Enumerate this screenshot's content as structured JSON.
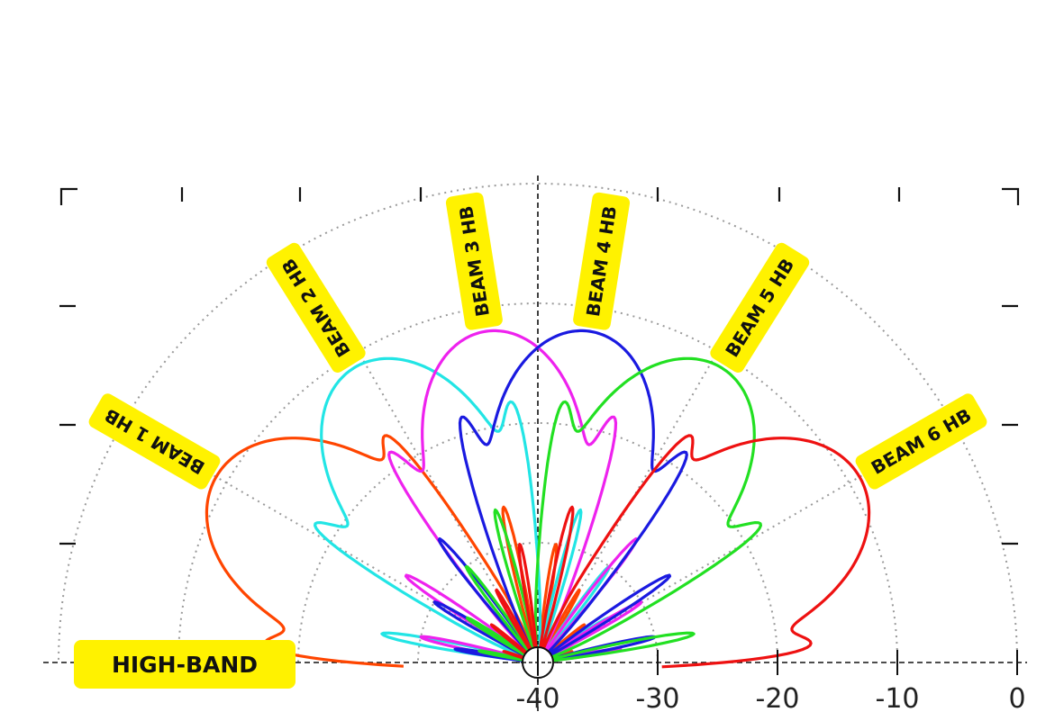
{
  "chart_data": {
    "type": "polar",
    "band_label": "HIGH-BAND",
    "radial_axis": {
      "unit": "dB",
      "range": [
        -40,
        0
      ],
      "ticks": [
        -40,
        -30,
        -20,
        -10,
        0
      ],
      "tick_labels": [
        "-40",
        "-30",
        "-20",
        "-10",
        "0"
      ]
    },
    "angular_axis": {
      "range_deg": [
        0,
        180
      ],
      "spoke_step_deg": 30
    },
    "grid": true,
    "lobe_shape": {
      "main_beamwidth_deg": 34,
      "sidelobe_peaks_db": [
        -23,
        -27,
        -30,
        -33,
        -35,
        -37
      ],
      "sidelobe_width_deg": 5
    },
    "series": [
      {
        "name": "BEAM 1 HB",
        "color": "#FF4500",
        "peak_angle_deg": 150,
        "peak_db": -9
      },
      {
        "name": "BEAM 2 HB",
        "color": "#22E5E5",
        "peak_angle_deg": 122,
        "peak_db": -11
      },
      {
        "name": "BEAM 3 HB",
        "color": "#EE22EE",
        "peak_angle_deg": 99,
        "peak_db": -12
      },
      {
        "name": "BEAM 4 HB",
        "color": "#1A1AE0",
        "peak_angle_deg": 81,
        "peak_db": -12
      },
      {
        "name": "BEAM 5 HB",
        "color": "#22E022",
        "peak_angle_deg": 58,
        "peak_db": -11
      },
      {
        "name": "BEAM 6 HB",
        "color": "#EE1111",
        "peak_angle_deg": 30,
        "peak_db": -9
      }
    ]
  }
}
